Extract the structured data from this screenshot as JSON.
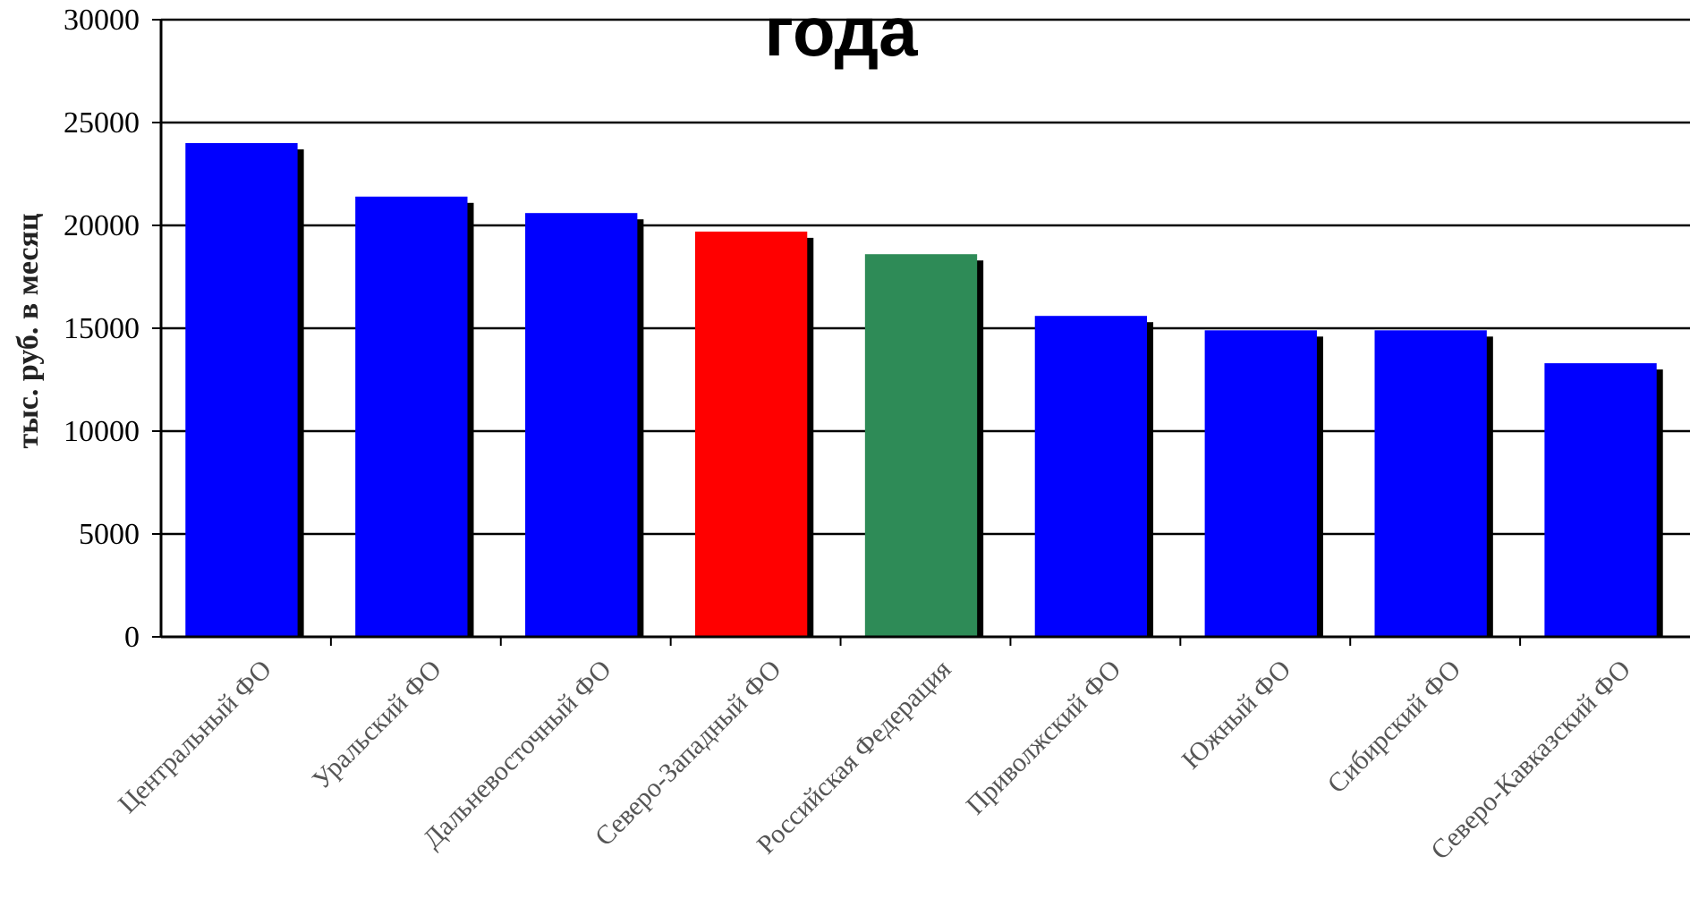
{
  "chart_data": {
    "type": "bar",
    "title": "года",
    "xlabel": "",
    "ylabel": "тыс. руб. в месяц",
    "ylim": [
      0,
      30000
    ],
    "yticks": [
      "0",
      "5000",
      "10000",
      "15000",
      "20000",
      "25000",
      "30000"
    ],
    "grid": true,
    "categories": [
      "Центральный ФО",
      "Уральский ФО",
      "Дальневосточный ФО",
      "Северо-Западный ФО",
      "Российская Федерация",
      "Приволжский ФО",
      "Южный ФО",
      "Сибирский ФО",
      "Северо-Кавказский ФО"
    ],
    "values": [
      24000,
      21400,
      20600,
      19700,
      18600,
      15600,
      14900,
      14900,
      13300
    ],
    "colors": [
      "#0000ff",
      "#0000ff",
      "#0000ff",
      "#ff0000",
      "#2e8b57",
      "#0000ff",
      "#0000ff",
      "#0000ff",
      "#0000ff"
    ]
  }
}
